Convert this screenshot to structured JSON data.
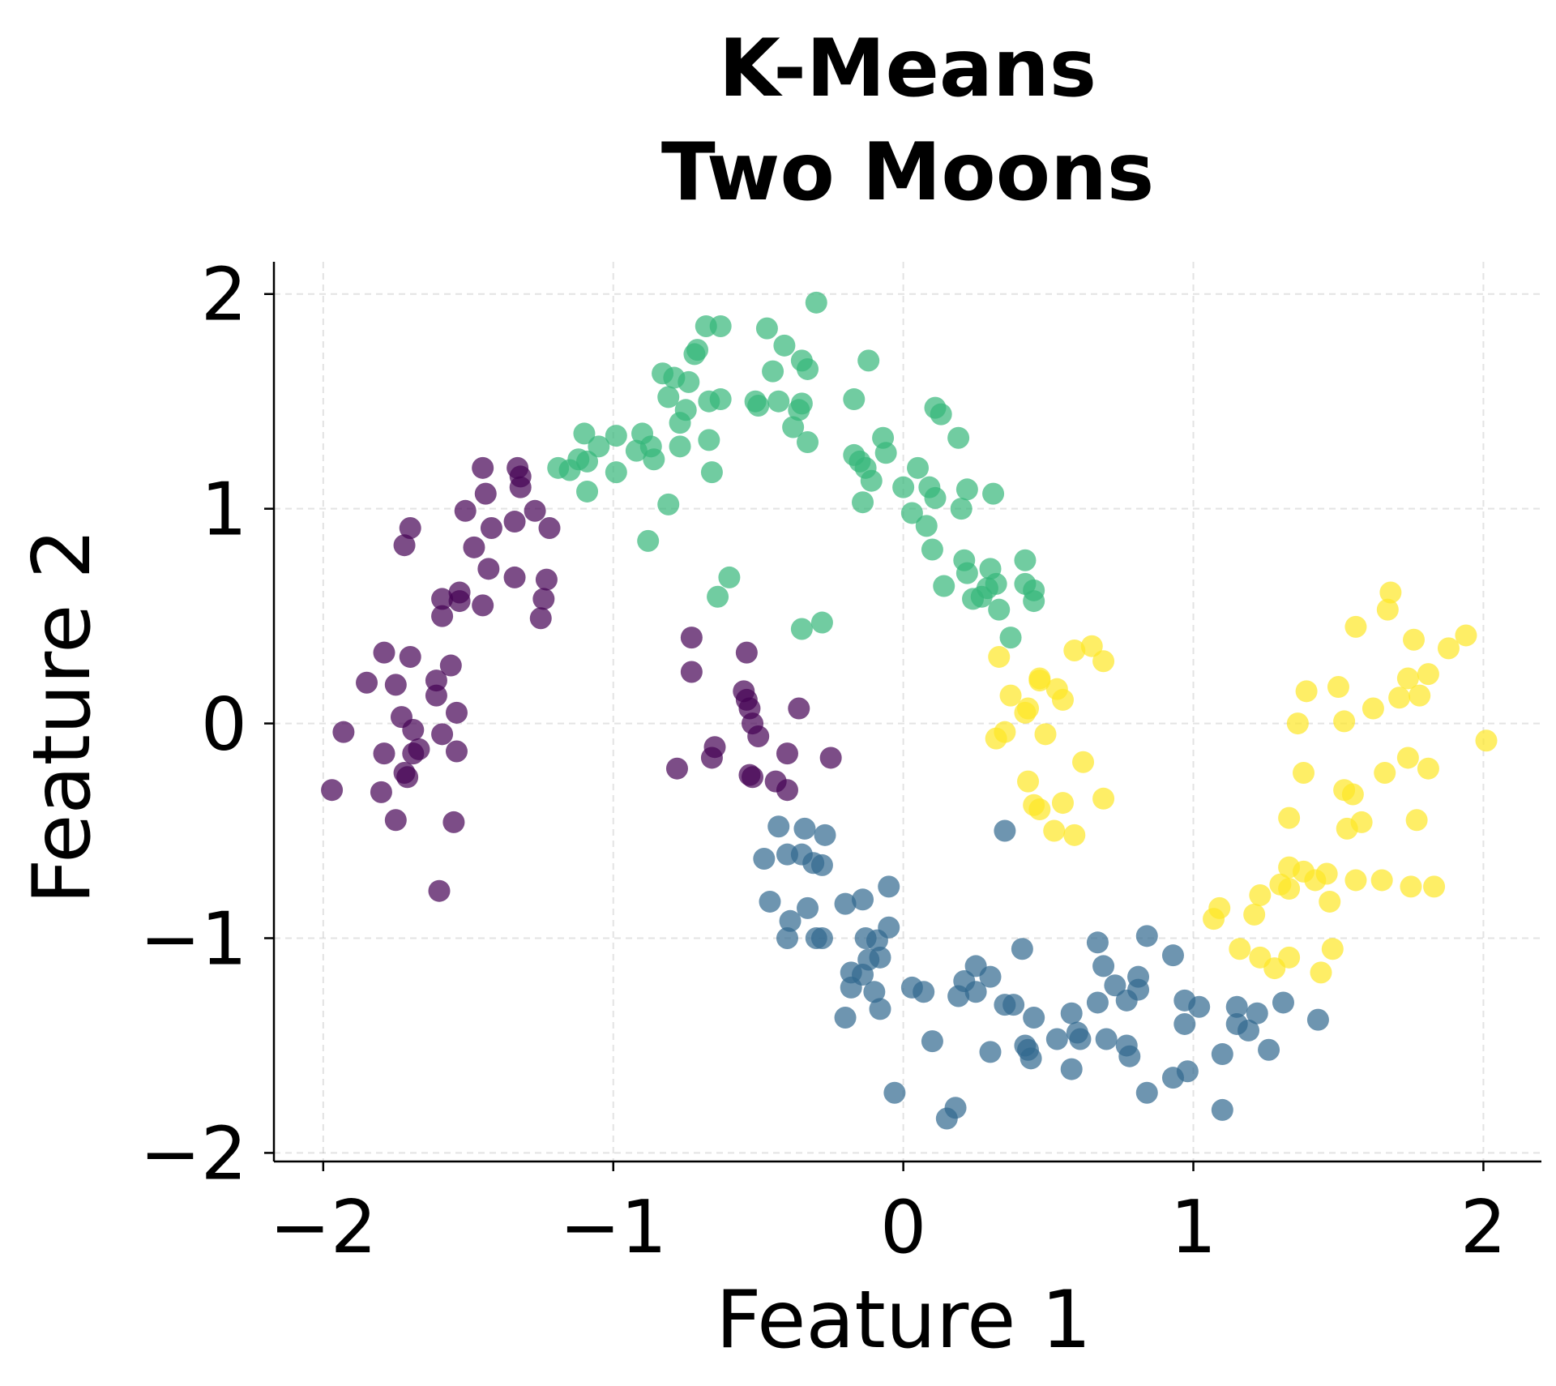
{
  "chart_data": {
    "type": "scatter",
    "title": "K-Means\nTwo Moons",
    "title_lines": [
      "K-Means",
      "Two Moons"
    ],
    "xlabel": "Feature 1",
    "ylabel": "Feature 2",
    "xlim": [
      -2.17,
      2.2
    ],
    "ylim": [
      -2.04,
      2.15
    ],
    "xticks": [
      -2,
      -1,
      0,
      1,
      2
    ],
    "yticks": [
      -2,
      -1,
      0,
      1,
      2
    ],
    "xtick_labels": [
      "−2",
      "−1",
      "0",
      "1",
      "2"
    ],
    "ytick_labels": [
      "−2",
      "−1",
      "0",
      "1",
      "2"
    ],
    "grid": true,
    "alpha": 0.7,
    "colormap": "viridis",
    "series": [
      {
        "color": "#440154",
        "points": [
          [
            -1.97,
            -0.31
          ],
          [
            -1.93,
            -0.04
          ],
          [
            -1.85,
            0.19
          ],
          [
            -1.79,
            0.33
          ],
          [
            -1.79,
            -0.14
          ],
          [
            -1.8,
            -0.32
          ],
          [
            -1.75,
            -0.45
          ],
          [
            -1.75,
            0.18
          ],
          [
            -1.73,
            0.03
          ],
          [
            -1.72,
            -0.23
          ],
          [
            -1.71,
            -0.25
          ],
          [
            -1.7,
            0.31
          ],
          [
            -1.69,
            -0.03
          ],
          [
            -1.69,
            -0.14
          ],
          [
            -1.67,
            -0.12
          ],
          [
            -1.72,
            0.83
          ],
          [
            -1.7,
            0.91
          ],
          [
            -1.61,
            0.2
          ],
          [
            -1.61,
            0.13
          ],
          [
            -1.59,
            -0.05
          ],
          [
            -1.6,
            -0.78
          ],
          [
            -1.59,
            0.5
          ],
          [
            -1.59,
            0.58
          ],
          [
            -1.56,
            0.27
          ],
          [
            -1.54,
            0.05
          ],
          [
            -1.54,
            -0.13
          ],
          [
            -1.55,
            -0.46
          ],
          [
            -1.53,
            0.61
          ],
          [
            -1.53,
            0.57
          ],
          [
            -1.51,
            0.99
          ],
          [
            -1.48,
            0.82
          ],
          [
            -1.45,
            1.19
          ],
          [
            -1.44,
            1.07
          ],
          [
            -1.45,
            0.55
          ],
          [
            -1.43,
            0.72
          ],
          [
            -1.42,
            0.91
          ],
          [
            -1.34,
            0.68
          ],
          [
            -1.34,
            0.94
          ],
          [
            -1.33,
            1.19
          ],
          [
            -1.32,
            1.1
          ],
          [
            -1.32,
            1.15
          ],
          [
            -1.27,
            0.99
          ],
          [
            -1.25,
            0.49
          ],
          [
            -1.24,
            0.58
          ],
          [
            -1.23,
            0.67
          ],
          [
            -1.22,
            0.91
          ],
          [
            -0.73,
            0.4
          ],
          [
            -0.73,
            0.24
          ],
          [
            -0.78,
            -0.21
          ],
          [
            -0.66,
            -0.16
          ],
          [
            -0.65,
            -0.11
          ],
          [
            -0.54,
            0.33
          ],
          [
            -0.55,
            0.15
          ],
          [
            -0.54,
            0.11
          ],
          [
            -0.53,
            0.07
          ],
          [
            -0.52,
            0.0
          ],
          [
            -0.5,
            -0.06
          ],
          [
            -0.53,
            -0.24
          ],
          [
            -0.52,
            -0.25
          ],
          [
            -0.44,
            -0.27
          ],
          [
            -0.4,
            -0.31
          ],
          [
            -0.4,
            -0.14
          ],
          [
            -0.36,
            0.07
          ],
          [
            -0.25,
            -0.16
          ]
        ]
      },
      {
        "color": "#31688e",
        "points": [
          [
            -0.43,
            -0.48
          ],
          [
            -0.34,
            -0.49
          ],
          [
            -0.27,
            -0.52
          ],
          [
            -0.48,
            -0.63
          ],
          [
            -0.4,
            -0.61
          ],
          [
            -0.35,
            -0.61
          ],
          [
            -0.31,
            -0.65
          ],
          [
            -0.28,
            -0.66
          ],
          [
            -0.46,
            -0.83
          ],
          [
            -0.33,
            -0.86
          ],
          [
            -0.39,
            -0.92
          ],
          [
            -0.4,
            -1.0
          ],
          [
            -0.3,
            -1.0
          ],
          [
            -0.28,
            -1.0
          ],
          [
            -0.2,
            -0.84
          ],
          [
            -0.14,
            -0.82
          ],
          [
            -0.05,
            -0.76
          ],
          [
            -0.05,
            -0.95
          ],
          [
            -0.13,
            -1.0
          ],
          [
            -0.09,
            -1.01
          ],
          [
            -0.08,
            -1.09
          ],
          [
            -0.12,
            -1.1
          ],
          [
            -0.18,
            -1.16
          ],
          [
            -0.14,
            -1.17
          ],
          [
            -0.18,
            -1.23
          ],
          [
            -0.1,
            -1.25
          ],
          [
            -0.08,
            -1.33
          ],
          [
            -0.2,
            -1.37
          ],
          [
            -0.03,
            -1.72
          ],
          [
            0.03,
            -1.23
          ],
          [
            0.07,
            -1.25
          ],
          [
            0.1,
            -1.48
          ],
          [
            0.15,
            -1.84
          ],
          [
            0.18,
            -1.79
          ],
          [
            0.19,
            -1.27
          ],
          [
            0.21,
            -1.2
          ],
          [
            0.25,
            -1.13
          ],
          [
            0.25,
            -1.25
          ],
          [
            0.3,
            -1.18
          ],
          [
            0.3,
            -1.53
          ],
          [
            0.35,
            -1.31
          ],
          [
            0.38,
            -1.31
          ],
          [
            0.35,
            -0.5
          ],
          [
            0.41,
            -1.05
          ],
          [
            0.42,
            -1.5
          ],
          [
            0.43,
            -1.52
          ],
          [
            0.44,
            -1.56
          ],
          [
            0.45,
            -1.37
          ],
          [
            0.53,
            -1.47
          ],
          [
            0.58,
            -1.35
          ],
          [
            0.58,
            -1.61
          ],
          [
            0.6,
            -1.44
          ],
          [
            0.61,
            -1.47
          ],
          [
            0.67,
            -1.3
          ],
          [
            0.67,
            -1.02
          ],
          [
            0.69,
            -1.13
          ],
          [
            0.7,
            -1.47
          ],
          [
            0.73,
            -1.22
          ],
          [
            0.77,
            -1.29
          ],
          [
            0.77,
            -1.5
          ],
          [
            0.78,
            -1.55
          ],
          [
            0.81,
            -1.18
          ],
          [
            0.81,
            -1.24
          ],
          [
            0.84,
            -0.99
          ],
          [
            0.84,
            -1.72
          ],
          [
            0.93,
            -1.08
          ],
          [
            0.93,
            -1.65
          ],
          [
            0.97,
            -1.29
          ],
          [
            0.97,
            -1.4
          ],
          [
            0.98,
            -1.62
          ],
          [
            1.02,
            -1.32
          ],
          [
            1.1,
            -1.54
          ],
          [
            1.1,
            -1.8
          ],
          [
            1.15,
            -1.32
          ],
          [
            1.15,
            -1.4
          ],
          [
            1.19,
            -1.43
          ],
          [
            1.22,
            -1.35
          ],
          [
            1.26,
            -1.52
          ],
          [
            1.31,
            -1.3
          ],
          [
            1.43,
            -1.38
          ]
        ]
      },
      {
        "color": "#35b779",
        "points": [
          [
            -1.09,
            1.08
          ],
          [
            -1.1,
            1.35
          ],
          [
            -1.19,
            1.19
          ],
          [
            -1.15,
            1.18
          ],
          [
            -1.12,
            1.23
          ],
          [
            -1.09,
            1.22
          ],
          [
            -1.05,
            1.29
          ],
          [
            -0.99,
            1.17
          ],
          [
            -0.99,
            1.34
          ],
          [
            -0.92,
            1.27
          ],
          [
            -0.9,
            1.35
          ],
          [
            -0.86,
            1.23
          ],
          [
            -0.87,
            1.29
          ],
          [
            -0.88,
            0.85
          ],
          [
            -0.81,
            1.02
          ],
          [
            -0.83,
            1.63
          ],
          [
            -0.81,
            1.52
          ],
          [
            -0.79,
            1.61
          ],
          [
            -0.77,
            1.4
          ],
          [
            -0.77,
            1.29
          ],
          [
            -0.75,
            1.46
          ],
          [
            -0.74,
            1.59
          ],
          [
            -0.72,
            1.72
          ],
          [
            -0.71,
            1.74
          ],
          [
            -0.68,
            1.85
          ],
          [
            -0.63,
            1.85
          ],
          [
            -0.67,
            1.32
          ],
          [
            -0.66,
            1.17
          ],
          [
            -0.67,
            1.5
          ],
          [
            -0.63,
            1.51
          ],
          [
            -0.64,
            0.59
          ],
          [
            -0.6,
            0.68
          ],
          [
            -0.51,
            1.5
          ],
          [
            -0.5,
            1.48
          ],
          [
            -0.47,
            1.84
          ],
          [
            -0.45,
            1.64
          ],
          [
            -0.41,
            1.76
          ],
          [
            -0.43,
            1.5
          ],
          [
            -0.38,
            1.38
          ],
          [
            -0.36,
            1.46
          ],
          [
            -0.35,
            1.49
          ],
          [
            -0.35,
            1.69
          ],
          [
            -0.33,
            1.65
          ],
          [
            -0.33,
            1.31
          ],
          [
            -0.3,
            1.96
          ],
          [
            -0.35,
            0.44
          ],
          [
            -0.28,
            0.47
          ],
          [
            -0.17,
            1.51
          ],
          [
            -0.17,
            1.25
          ],
          [
            -0.15,
            1.22
          ],
          [
            -0.13,
            1.19
          ],
          [
            -0.12,
            1.69
          ],
          [
            -0.11,
            1.13
          ],
          [
            -0.14,
            1.03
          ],
          [
            -0.07,
            1.33
          ],
          [
            -0.06,
            1.26
          ],
          [
            0.0,
            1.1
          ],
          [
            0.03,
            0.98
          ],
          [
            0.05,
            1.19
          ],
          [
            0.08,
            0.92
          ],
          [
            0.09,
            1.1
          ],
          [
            0.1,
            0.81
          ],
          [
            0.11,
            1.05
          ],
          [
            0.11,
            1.47
          ],
          [
            0.13,
            1.44
          ],
          [
            0.14,
            0.64
          ],
          [
            0.19,
            1.33
          ],
          [
            0.2,
            1.0
          ],
          [
            0.21,
            0.76
          ],
          [
            0.22,
            1.09
          ],
          [
            0.22,
            0.7
          ],
          [
            0.24,
            0.58
          ],
          [
            0.27,
            0.59
          ],
          [
            0.3,
            0.72
          ],
          [
            0.31,
            1.07
          ],
          [
            0.32,
            0.65
          ],
          [
            0.33,
            0.53
          ],
          [
            0.37,
            0.4
          ],
          [
            0.42,
            0.76
          ],
          [
            0.42,
            0.65
          ],
          [
            0.45,
            0.57
          ],
          [
            0.45,
            0.62
          ],
          [
            0.29,
            0.63
          ]
        ]
      },
      {
        "color": "#fde725",
        "points": [
          [
            0.33,
            0.31
          ],
          [
            0.37,
            0.13
          ],
          [
            0.32,
            -0.07
          ],
          [
            0.35,
            -0.04
          ],
          [
            0.42,
            0.05
          ],
          [
            0.43,
            0.07
          ],
          [
            0.47,
            0.21
          ],
          [
            0.47,
            0.2
          ],
          [
            0.53,
            0.16
          ],
          [
            0.55,
            0.11
          ],
          [
            0.49,
            -0.05
          ],
          [
            0.59,
            0.34
          ],
          [
            0.65,
            0.36
          ],
          [
            0.69,
            0.29
          ],
          [
            0.43,
            -0.27
          ],
          [
            0.62,
            -0.18
          ],
          [
            0.45,
            -0.38
          ],
          [
            0.47,
            -0.4
          ],
          [
            0.55,
            -0.37
          ],
          [
            0.69,
            -0.35
          ],
          [
            0.52,
            -0.5
          ],
          [
            0.59,
            -0.52
          ],
          [
            1.07,
            -0.91
          ],
          [
            1.09,
            -0.86
          ],
          [
            1.16,
            -1.05
          ],
          [
            1.21,
            -0.89
          ],
          [
            1.23,
            -0.8
          ],
          [
            1.23,
            -1.09
          ],
          [
            1.28,
            -1.14
          ],
          [
            1.3,
            -0.75
          ],
          [
            1.33,
            -0.67
          ],
          [
            1.33,
            -0.77
          ],
          [
            1.33,
            -1.09
          ],
          [
            1.33,
            -0.44
          ],
          [
            1.36,
            0.0
          ],
          [
            1.38,
            -0.23
          ],
          [
            1.39,
            0.15
          ],
          [
            1.38,
            -0.69
          ],
          [
            1.42,
            -0.73
          ],
          [
            1.44,
            -1.16
          ],
          [
            1.46,
            -0.7
          ],
          [
            1.47,
            -0.83
          ],
          [
            1.48,
            -1.05
          ],
          [
            1.5,
            0.17
          ],
          [
            1.52,
            0.01
          ],
          [
            1.52,
            -0.31
          ],
          [
            1.55,
            -0.33
          ],
          [
            1.53,
            -0.49
          ],
          [
            1.58,
            -0.46
          ],
          [
            1.56,
            0.45
          ],
          [
            1.56,
            -0.73
          ],
          [
            1.62,
            0.07
          ],
          [
            1.65,
            -0.73
          ],
          [
            1.66,
            -0.23
          ],
          [
            1.67,
            0.53
          ],
          [
            1.68,
            0.61
          ],
          [
            1.71,
            0.12
          ],
          [
            1.74,
            -0.16
          ],
          [
            1.74,
            0.21
          ],
          [
            1.76,
            0.39
          ],
          [
            1.75,
            -0.76
          ],
          [
            1.77,
            -0.45
          ],
          [
            1.78,
            0.13
          ],
          [
            1.81,
            0.23
          ],
          [
            1.81,
            -0.21
          ],
          [
            1.83,
            -0.76
          ],
          [
            1.88,
            0.35
          ],
          [
            1.94,
            0.41
          ],
          [
            2.01,
            -0.08
          ]
        ]
      }
    ]
  }
}
